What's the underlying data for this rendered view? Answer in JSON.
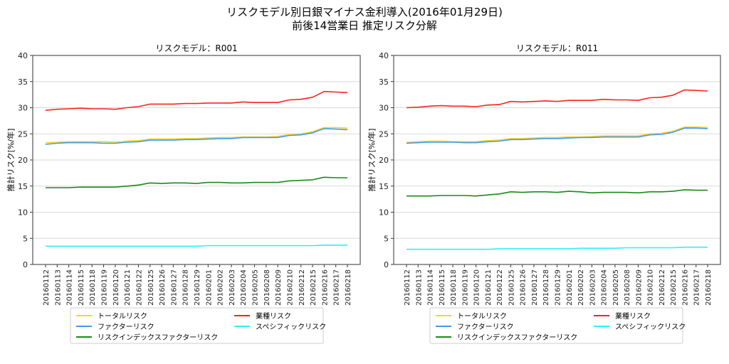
{
  "title_line1": "リスクモデル別日銀マイナス金利導入(2016年01月29日)",
  "title_line2": "前後14営業日 推定リスク分解",
  "colors": {
    "total": "#ffd21f",
    "factor": "#3f9bf0",
    "index_factor": "#1a8a1a",
    "industry": "#ff2020",
    "specific": "#2ef0f8"
  },
  "chart_data": [
    {
      "type": "line",
      "title": "リスクモデル：R001",
      "xlabel": "",
      "ylabel": "推計リスク[%/年]",
      "ylim": [
        0,
        40
      ],
      "yticks": [
        "0",
        "5",
        "10",
        "15",
        "20",
        "25",
        "30",
        "35",
        "40"
      ],
      "grid": true,
      "legend_placement": "bottom",
      "categories": [
        "20160112",
        "20160113",
        "20160114",
        "20160115",
        "20160118",
        "20160119",
        "20160120",
        "20160121",
        "20160122",
        "20160125",
        "20160126",
        "20160127",
        "20160128",
        "20160129",
        "20160201",
        "20160202",
        "20160203",
        "20160204",
        "20160205",
        "20160208",
        "20160209",
        "20160210",
        "20160212",
        "20160215",
        "20160216",
        "20160217",
        "20160218"
      ],
      "series": [
        {
          "key": "total",
          "name": "トータルリスク",
          "values": [
            23.3,
            23.4,
            23.5,
            23.5,
            23.5,
            23.5,
            23.4,
            23.6,
            23.7,
            24.0,
            24.0,
            24.0,
            24.1,
            24.1,
            24.2,
            24.3,
            24.3,
            24.4,
            24.4,
            24.4,
            24.5,
            24.9,
            25.0,
            25.4,
            26.2,
            26.2,
            26.1
          ]
        },
        {
          "key": "factor",
          "name": "ファクターリスク",
          "values": [
            23.0,
            23.2,
            23.3,
            23.3,
            23.3,
            23.2,
            23.2,
            23.4,
            23.5,
            23.8,
            23.8,
            23.8,
            23.9,
            23.9,
            24.0,
            24.1,
            24.1,
            24.3,
            24.3,
            24.3,
            24.3,
            24.7,
            24.8,
            25.2,
            26.0,
            25.9,
            25.8
          ]
        },
        {
          "key": "index_factor",
          "name": "リスクインデックスファクターリスク",
          "values": [
            14.7,
            14.7,
            14.7,
            14.8,
            14.8,
            14.8,
            14.8,
            15.0,
            15.2,
            15.6,
            15.5,
            15.6,
            15.6,
            15.5,
            15.7,
            15.7,
            15.6,
            15.6,
            15.7,
            15.7,
            15.7,
            16.0,
            16.1,
            16.2,
            16.7,
            16.6,
            16.6
          ]
        },
        {
          "key": "industry",
          "name": "業種リスク",
          "values": [
            29.5,
            29.7,
            29.8,
            29.9,
            29.8,
            29.8,
            29.7,
            30.0,
            30.2,
            30.7,
            30.7,
            30.7,
            30.8,
            30.8,
            30.9,
            30.9,
            30.9,
            31.1,
            31.0,
            31.0,
            31.0,
            31.5,
            31.6,
            32.0,
            33.1,
            33.0,
            32.9
          ]
        },
        {
          "key": "specific",
          "name": "スペシフィックリスク",
          "values": [
            3.5,
            3.5,
            3.5,
            3.5,
            3.5,
            3.5,
            3.5,
            3.5,
            3.5,
            3.5,
            3.5,
            3.5,
            3.5,
            3.5,
            3.6,
            3.6,
            3.6,
            3.6,
            3.6,
            3.6,
            3.6,
            3.6,
            3.6,
            3.6,
            3.7,
            3.7,
            3.7
          ]
        }
      ]
    },
    {
      "type": "line",
      "title": "リスクモデル：R011",
      "xlabel": "",
      "ylabel": "推計リスク[%/年]",
      "ylim": [
        0,
        40
      ],
      "yticks": [
        "0",
        "5",
        "10",
        "15",
        "20",
        "25",
        "30",
        "35",
        "40"
      ],
      "grid": true,
      "legend_placement": "bottom",
      "categories": [
        "20160112",
        "20160113",
        "20160114",
        "20160115",
        "20160118",
        "20160119",
        "20160120",
        "20160121",
        "20160122",
        "20160125",
        "20160126",
        "20160127",
        "20160128",
        "20160129",
        "20160201",
        "20160202",
        "20160203",
        "20160204",
        "20160205",
        "20160208",
        "20160209",
        "20160210",
        "20160212",
        "20160215",
        "20160216",
        "20160217",
        "20160218"
      ],
      "series": [
        {
          "key": "total",
          "name": "トータルリスク",
          "values": [
            23.4,
            23.5,
            23.6,
            23.6,
            23.5,
            23.5,
            23.5,
            23.7,
            23.8,
            24.1,
            24.1,
            24.2,
            24.3,
            24.3,
            24.4,
            24.4,
            24.5,
            24.6,
            24.6,
            24.6,
            24.6,
            25.0,
            25.1,
            25.5,
            26.3,
            26.3,
            26.2
          ]
        },
        {
          "key": "factor",
          "name": "ファクターリスク",
          "values": [
            23.2,
            23.3,
            23.4,
            23.4,
            23.4,
            23.3,
            23.3,
            23.5,
            23.6,
            23.9,
            23.9,
            24.0,
            24.1,
            24.1,
            24.2,
            24.3,
            24.3,
            24.4,
            24.4,
            24.4,
            24.4,
            24.8,
            24.9,
            25.3,
            26.1,
            26.1,
            26.0
          ]
        },
        {
          "key": "index_factor",
          "name": "リスクインデックスファクターリスク",
          "values": [
            13.1,
            13.1,
            13.1,
            13.2,
            13.2,
            13.2,
            13.1,
            13.3,
            13.5,
            13.9,
            13.8,
            13.9,
            13.9,
            13.8,
            14.0,
            13.9,
            13.7,
            13.8,
            13.8,
            13.8,
            13.7,
            13.9,
            13.9,
            14.0,
            14.3,
            14.2,
            14.2
          ]
        },
        {
          "key": "industry",
          "name": "業種リスク",
          "values": [
            30.0,
            30.1,
            30.3,
            30.4,
            30.3,
            30.3,
            30.2,
            30.5,
            30.6,
            31.2,
            31.1,
            31.2,
            31.3,
            31.2,
            31.4,
            31.4,
            31.4,
            31.6,
            31.5,
            31.5,
            31.4,
            31.9,
            32.0,
            32.4,
            33.4,
            33.3,
            33.2
          ]
        },
        {
          "key": "specific",
          "name": "スペシフィックリスク",
          "values": [
            2.9,
            2.9,
            2.9,
            2.9,
            2.9,
            2.9,
            2.9,
            2.9,
            3.0,
            3.0,
            3.0,
            3.0,
            3.0,
            3.0,
            3.0,
            3.1,
            3.1,
            3.1,
            3.1,
            3.2,
            3.2,
            3.2,
            3.2,
            3.2,
            3.3,
            3.3,
            3.3
          ]
        }
      ]
    }
  ]
}
